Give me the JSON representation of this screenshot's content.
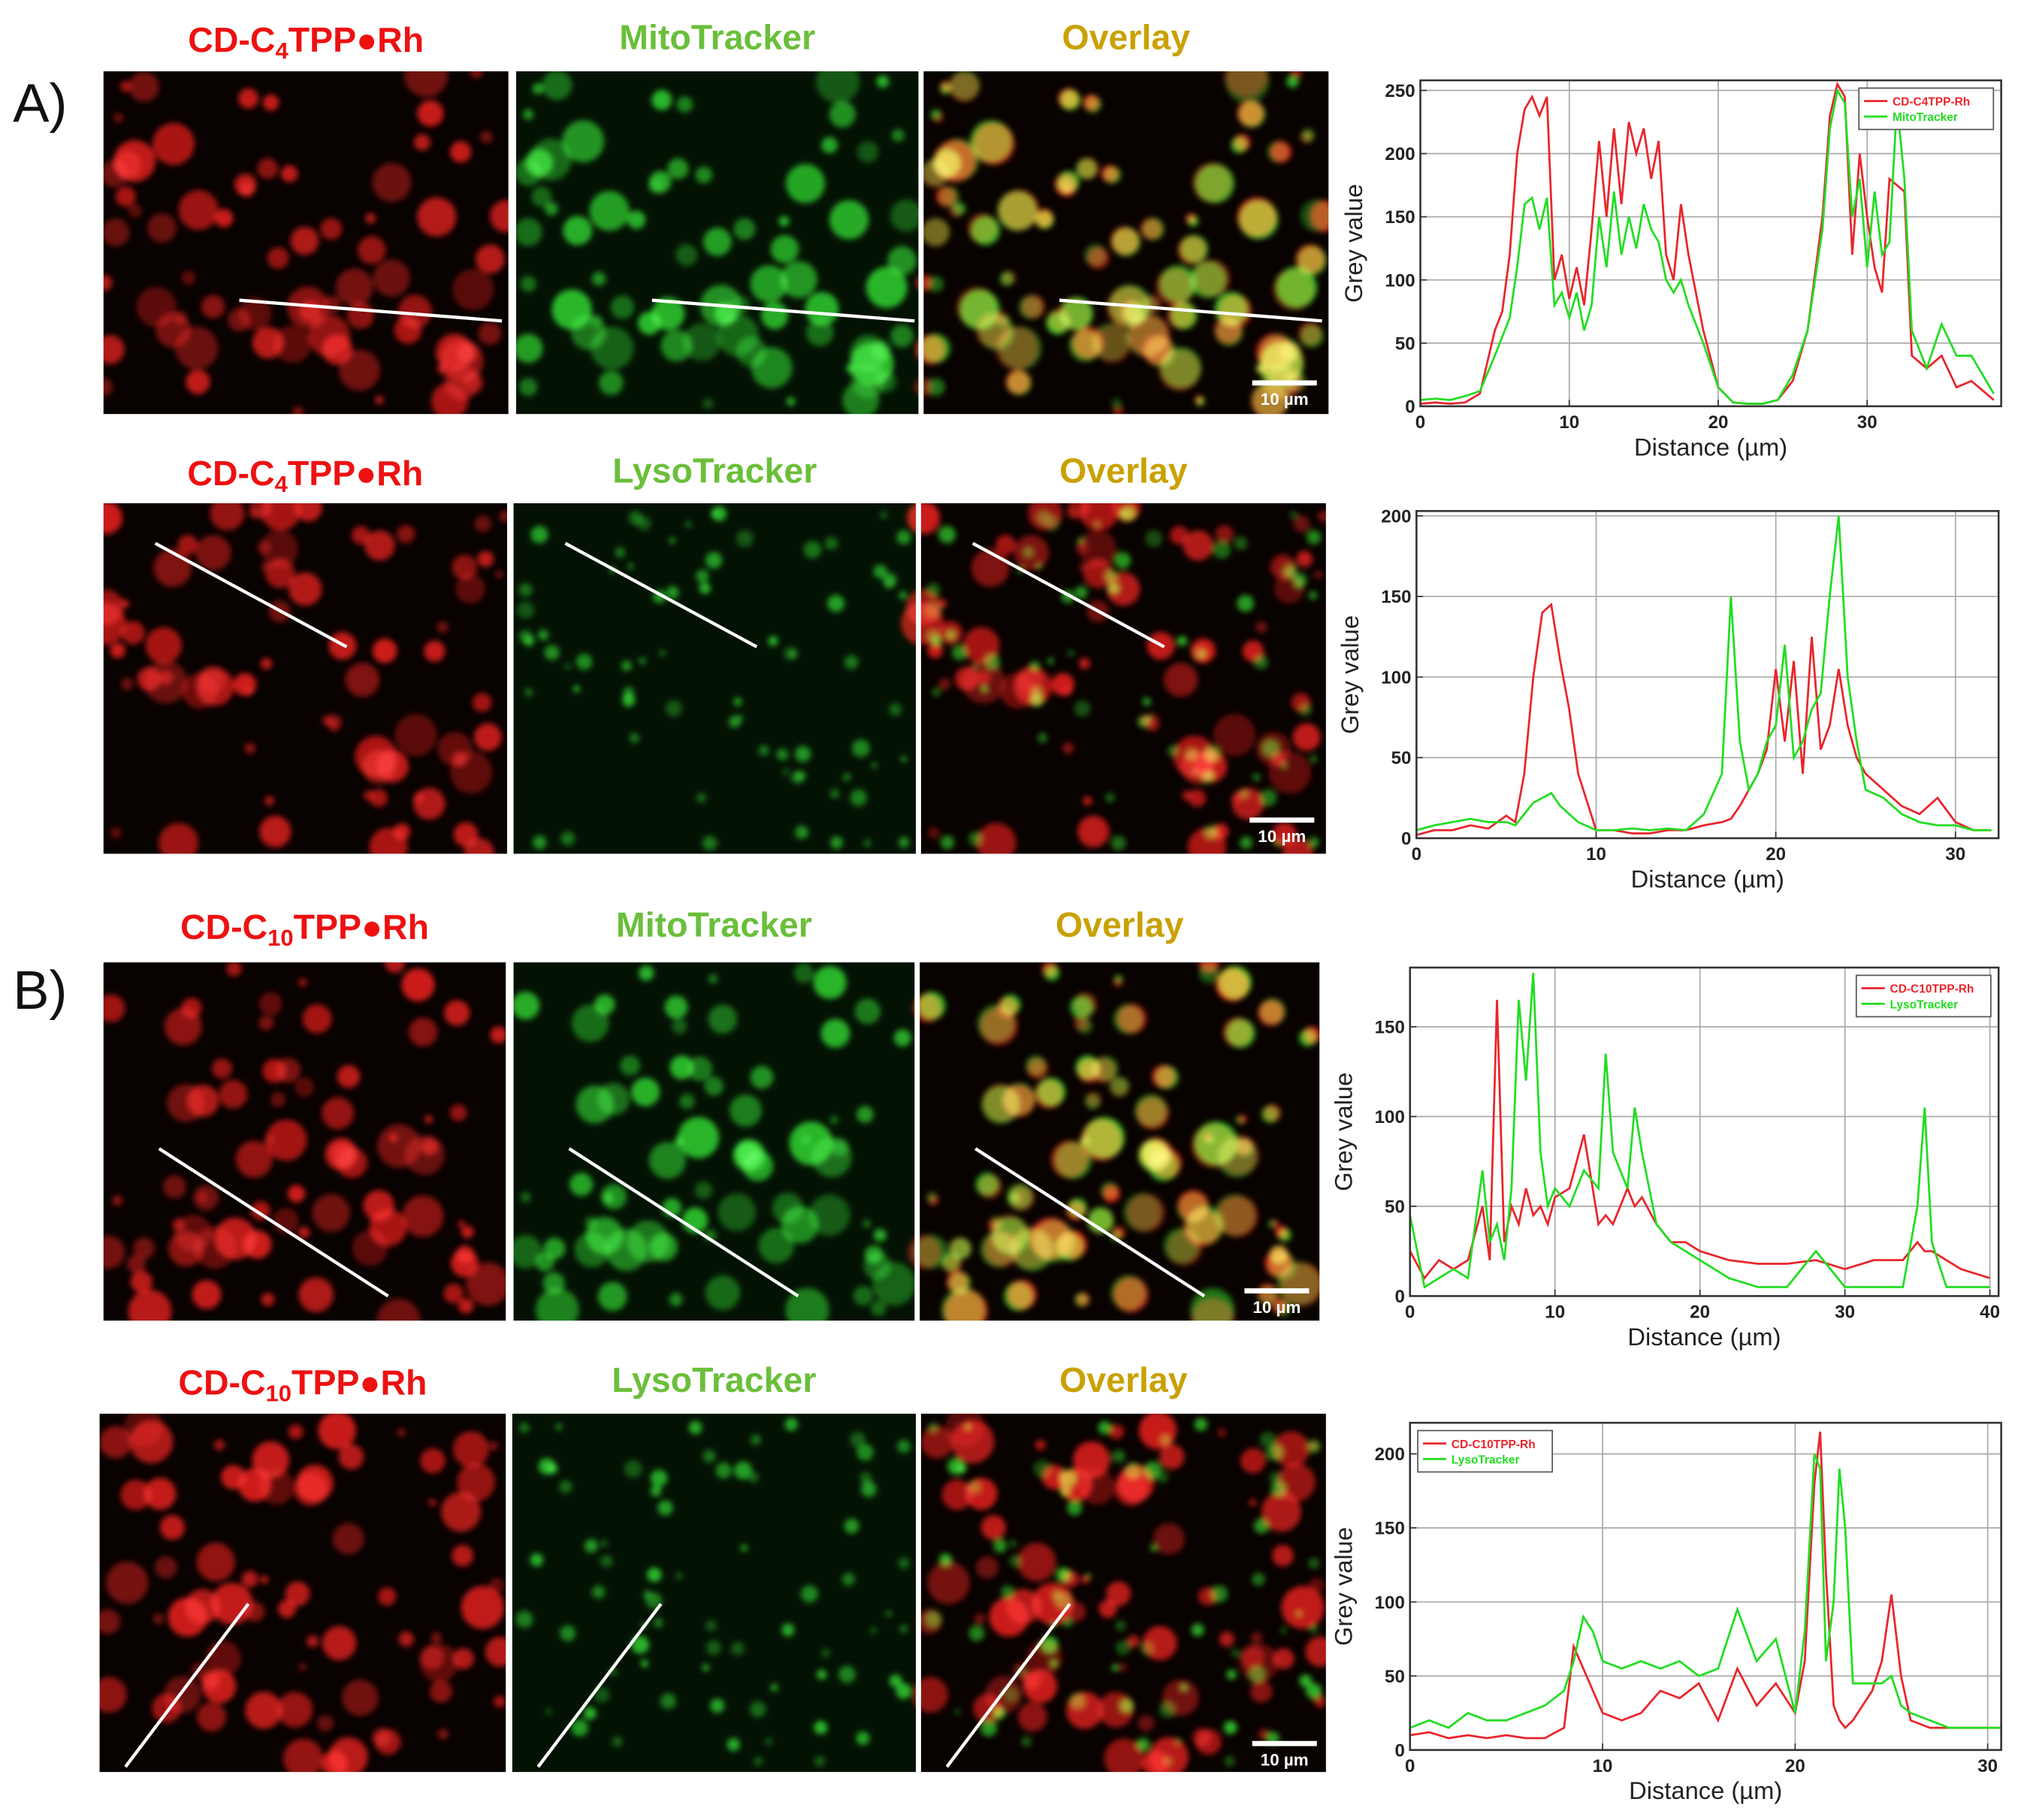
{
  "panel_labels": [
    "A)",
    "B)"
  ],
  "rows": [
    {
      "probe": {
        "prefix": "CD-C",
        "sub": "4",
        "suffix": "TPP●Rh"
      },
      "tracker": "MitoTracker",
      "overlay": "Overlay",
      "scale_bar": "10 µm"
    },
    {
      "probe": {
        "prefix": "CD-C",
        "sub": "4",
        "suffix": "TPP●Rh"
      },
      "tracker": "LysoTracker",
      "overlay": "Overlay",
      "scale_bar": "10 µm"
    },
    {
      "probe": {
        "prefix": "CD-C",
        "sub": "10",
        "suffix": "TPP●Rh"
      },
      "tracker": "MitoTracker",
      "overlay": "Overlay",
      "scale_bar": "10 µm"
    },
    {
      "probe": {
        "prefix": "CD-C",
        "sub": "10",
        "suffix": "TPP●Rh"
      },
      "tracker": "LysoTracker",
      "overlay": "Overlay",
      "scale_bar": "10 µm"
    }
  ],
  "chart_data": [
    {
      "type": "line",
      "xlabel": "Distance (µm)",
      "ylabel": "Grey value",
      "grid": true,
      "legend": "upper right",
      "xlim": [
        0,
        39
      ],
      "ylim": [
        0,
        258
      ],
      "xticks": [
        0,
        10,
        20,
        30
      ],
      "yticks": [
        0,
        50,
        100,
        150,
        200,
        250
      ],
      "x": [
        0,
        1,
        2,
        3,
        4,
        5,
        5.5,
        6,
        6.5,
        7,
        7.5,
        8,
        8.5,
        9,
        9.5,
        10,
        10.5,
        11,
        11.5,
        12,
        12.5,
        13,
        13.5,
        14,
        14.5,
        15,
        15.5,
        16,
        16.5,
        17,
        17.5,
        18,
        19,
        20,
        21,
        22,
        23,
        24,
        25,
        26,
        27,
        27.5,
        28,
        28.5,
        29,
        29.5,
        30,
        30.5,
        31,
        31.5,
        32,
        32.5,
        33,
        34,
        35,
        36,
        37,
        38.5
      ],
      "series": [
        {
          "name": "CD-C4TPP-Rh",
          "color": "#e8262c",
          "values": [
            2,
            3,
            2,
            3,
            10,
            60,
            75,
            120,
            200,
            235,
            245,
            230,
            245,
            100,
            120,
            85,
            110,
            80,
            140,
            210,
            150,
            220,
            160,
            225,
            200,
            220,
            180,
            210,
            120,
            100,
            160,
            120,
            60,
            15,
            3,
            2,
            2,
            5,
            20,
            60,
            150,
            230,
            255,
            245,
            120,
            200,
            150,
            110,
            90,
            180,
            175,
            170,
            40,
            30,
            40,
            15,
            20,
            5
          ]
        },
        {
          "name": "MitoTracker",
          "color": "#22dd22",
          "values": [
            5,
            6,
            5,
            8,
            12,
            40,
            55,
            70,
            110,
            160,
            165,
            140,
            165,
            80,
            90,
            70,
            90,
            60,
            80,
            150,
            110,
            170,
            120,
            150,
            125,
            160,
            140,
            130,
            100,
            90,
            100,
            80,
            50,
            15,
            3,
            2,
            2,
            5,
            25,
            60,
            140,
            220,
            250,
            240,
            150,
            180,
            110,
            170,
            120,
            130,
            240,
            180,
            60,
            30,
            65,
            40,
            40,
            10
          ]
        }
      ]
    },
    {
      "type": "line",
      "xlabel": "Distance (µm)",
      "ylabel": "Grey value",
      "grid": true,
      "xlim": [
        0,
        32.4
      ],
      "ylim": [
        0,
        203
      ],
      "xticks": [
        0,
        10,
        20,
        30
      ],
      "yticks": [
        0,
        50,
        100,
        150,
        200
      ],
      "x": [
        0,
        1,
        2,
        3,
        4,
        5,
        5.5,
        6,
        6.5,
        7,
        7.5,
        8,
        8.5,
        9,
        10,
        11,
        12,
        13,
        14,
        15,
        16,
        17,
        17.5,
        18,
        18.5,
        19,
        19.5,
        20,
        20.5,
        21,
        21.5,
        22,
        22.5,
        23,
        23.5,
        24,
        24.5,
        25,
        26,
        27,
        28,
        29,
        30,
        31,
        32
      ],
      "series": [
        {
          "color": "#e8262c",
          "values": [
            2,
            5,
            5,
            8,
            6,
            14,
            10,
            40,
            100,
            140,
            145,
            110,
            80,
            40,
            5,
            5,
            3,
            3,
            5,
            5,
            8,
            10,
            12,
            20,
            30,
            40,
            55,
            105,
            60,
            110,
            40,
            125,
            55,
            70,
            105,
            70,
            50,
            40,
            30,
            20,
            15,
            25,
            10,
            5,
            5
          ]
        },
        {
          "color": "#22dd22",
          "values": [
            5,
            8,
            10,
            12,
            10,
            10,
            8,
            15,
            22,
            25,
            28,
            20,
            15,
            10,
            5,
            5,
            6,
            5,
            6,
            5,
            15,
            40,
            150,
            60,
            30,
            40,
            60,
            70,
            120,
            50,
            60,
            80,
            90,
            150,
            200,
            100,
            60,
            30,
            25,
            15,
            10,
            8,
            8,
            5,
            5
          ]
        }
      ]
    },
    {
      "type": "line",
      "xlabel": "Distance (µm)",
      "ylabel": "Grey value",
      "grid": true,
      "legend": "upper right",
      "xlim": [
        0,
        40.6
      ],
      "ylim": [
        0,
        183
      ],
      "xticks": [
        0,
        10,
        20,
        30,
        40
      ],
      "yticks": [
        0,
        50,
        100,
        150
      ],
      "x": [
        0,
        1,
        2,
        3,
        4,
        5,
        5.5,
        6,
        6.5,
        7,
        7.5,
        8,
        8.5,
        9,
        9.5,
        10,
        11,
        12,
        13,
        13.5,
        14,
        15,
        15.5,
        16,
        17,
        18,
        19,
        20,
        22,
        24,
        26,
        28,
        30,
        32,
        34,
        35,
        35.5,
        36,
        37,
        38,
        40
      ],
      "series": [
        {
          "name": "CD-C10TPP-Rh",
          "color": "#e8262c",
          "values": [
            25,
            10,
            20,
            15,
            20,
            50,
            20,
            165,
            30,
            50,
            40,
            60,
            45,
            50,
            40,
            55,
            60,
            90,
            40,
            45,
            40,
            60,
            50,
            55,
            40,
            30,
            30,
            25,
            20,
            18,
            18,
            20,
            15,
            20,
            20,
            30,
            25,
            25,
            20,
            15,
            10
          ]
        },
        {
          "name": "LysoTracker",
          "color": "#22dd22",
          "values": [
            45,
            5,
            10,
            15,
            10,
            70,
            30,
            40,
            20,
            60,
            165,
            120,
            180,
            80,
            50,
            60,
            50,
            70,
            60,
            135,
            80,
            60,
            105,
            80,
            40,
            30,
            25,
            20,
            10,
            5,
            5,
            25,
            5,
            5,
            5,
            50,
            105,
            30,
            5,
            5,
            5
          ]
        }
      ]
    },
    {
      "type": "line",
      "xlabel": "Distance (µm)",
      "ylabel": "Grey value",
      "grid": true,
      "legend": "upper left",
      "xlim": [
        0,
        30.7
      ],
      "ylim": [
        0,
        221
      ],
      "xticks": [
        0,
        10,
        20,
        30
      ],
      "yticks": [
        0,
        50,
        100,
        150,
        200
      ],
      "x": [
        0,
        1,
        2,
        3,
        4,
        5,
        6,
        7,
        8,
        8.5,
        9,
        9.5,
        10,
        11,
        12,
        13,
        14,
        15,
        16,
        17,
        18,
        19,
        20,
        20.5,
        21,
        21.3,
        21.6,
        22,
        22.3,
        22.6,
        23,
        24,
        24.5,
        25,
        25.5,
        26,
        27,
        28,
        29,
        30,
        30.7
      ],
      "series": [
        {
          "name": "CD-C10TPP-Rh",
          "color": "#e8262c",
          "values": [
            10,
            12,
            8,
            10,
            8,
            10,
            8,
            8,
            15,
            70,
            55,
            40,
            25,
            20,
            25,
            40,
            35,
            45,
            20,
            55,
            30,
            45,
            25,
            60,
            180,
            215,
            120,
            30,
            20,
            15,
            20,
            40,
            60,
            105,
            50,
            20,
            15,
            15,
            15,
            15,
            15
          ]
        },
        {
          "name": "LysoTracker",
          "color": "#22dd22",
          "values": [
            15,
            20,
            15,
            25,
            20,
            20,
            25,
            30,
            40,
            60,
            90,
            80,
            60,
            55,
            60,
            55,
            60,
            50,
            55,
            95,
            60,
            75,
            25,
            80,
            200,
            190,
            60,
            100,
            190,
            150,
            45,
            45,
            45,
            50,
            30,
            25,
            20,
            15,
            15,
            15,
            15
          ]
        }
      ]
    }
  ]
}
